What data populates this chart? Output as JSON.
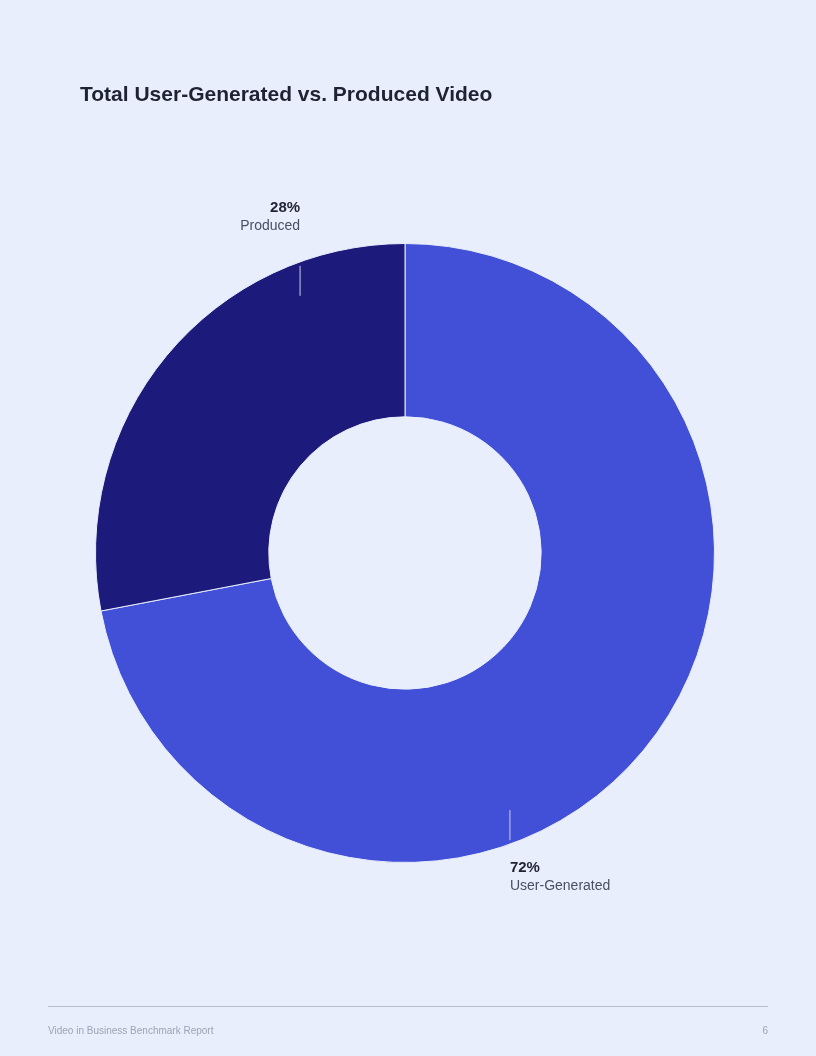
{
  "chart_data": {
    "type": "donut",
    "title": "Total User-Generated vs. Produced Video",
    "categories": [
      "User-Generated",
      "Produced"
    ],
    "values": [
      72,
      28
    ],
    "colors": [
      "#4150d7",
      "#1c1a7b"
    ],
    "value_labels": [
      "72%",
      "28%"
    ],
    "legend": false,
    "annotations": [
      "Video in Business Benchmark Report",
      "6"
    ]
  }
}
